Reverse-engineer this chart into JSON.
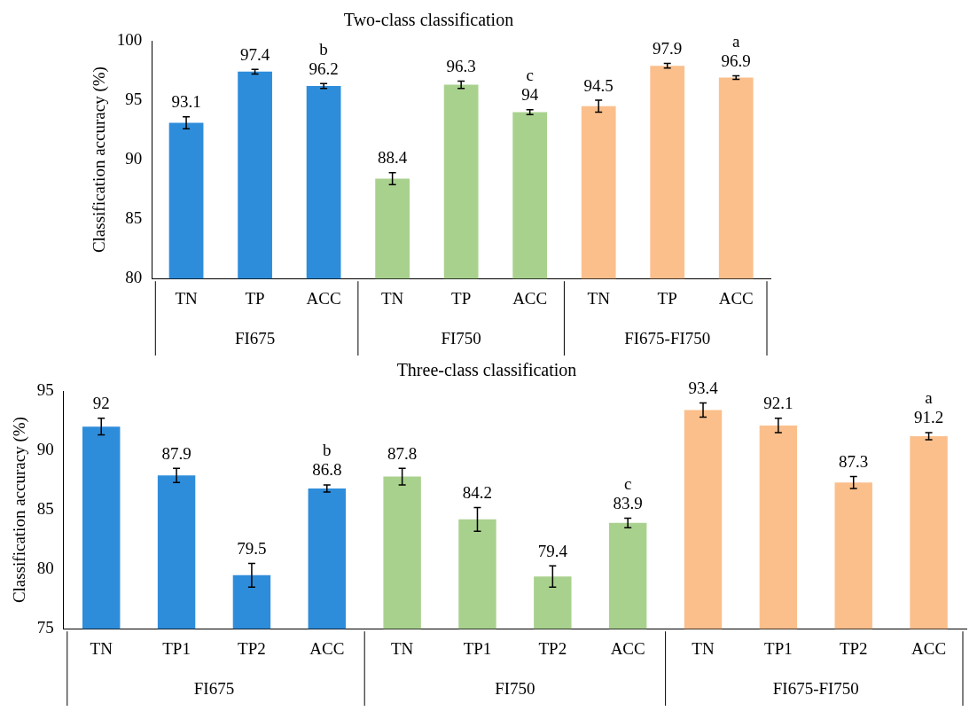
{
  "chart_data": [
    {
      "type": "bar",
      "title": "Two-class classification",
      "ylabel": "Classification accuracy (%)",
      "categories": [
        "TN",
        "TP",
        "ACC",
        "TN",
        "TP",
        "ACC",
        "TN",
        "TP",
        "ACC"
      ],
      "values": [
        93.1,
        97.4,
        96.2,
        88.4,
        96.3,
        94,
        94.5,
        97.9,
        96.9
      ],
      "errors": [
        0.5,
        0.2,
        0.2,
        0.5,
        0.3,
        0.2,
        0.5,
        0.2,
        0.15
      ],
      "colors": [
        "#2e8ddb",
        "#2e8ddb",
        "#2e8ddb",
        "#a9d18e",
        "#a9d18e",
        "#a9d18e",
        "#fbbf8c",
        "#fbbf8c",
        "#fbbf8c"
      ],
      "ylim": [
        80,
        100
      ],
      "yticks": [
        80,
        85,
        90,
        95,
        100
      ],
      "grid": false,
      "data_labels": true,
      "annotations": [
        "FI675",
        "FI750",
        "FI675-FI750",
        "b",
        "c",
        "a"
      ]
    },
    {
      "type": "bar",
      "title": "Three-class classification",
      "ylabel": "Classification accuracy (%)",
      "categories": [
        "TN",
        "TP1",
        "TP2",
        "ACC",
        "TN",
        "TP1",
        "TP2",
        "ACC",
        "TN",
        "TP1",
        "TP2",
        "ACC"
      ],
      "values": [
        92,
        87.9,
        79.5,
        86.8,
        87.8,
        84.2,
        79.4,
        83.9,
        93.4,
        92.1,
        87.3,
        91.2
      ],
      "errors": [
        0.7,
        0.6,
        1.0,
        0.3,
        0.7,
        1.0,
        0.9,
        0.4,
        0.6,
        0.6,
        0.5,
        0.3
      ],
      "colors": [
        "#2e8ddb",
        "#2e8ddb",
        "#2e8ddb",
        "#2e8ddb",
        "#a9d18e",
        "#a9d18e",
        "#a9d18e",
        "#a9d18e",
        "#fbbf8c",
        "#fbbf8c",
        "#fbbf8c",
        "#fbbf8c"
      ],
      "ylim": [
        75,
        95
      ],
      "yticks": [
        75,
        80,
        85,
        90,
        95
      ],
      "grid": false,
      "data_labels": true,
      "annotations": [
        "FI675",
        "FI750",
        "FI675-FI750",
        "b",
        "c",
        "a"
      ]
    }
  ]
}
